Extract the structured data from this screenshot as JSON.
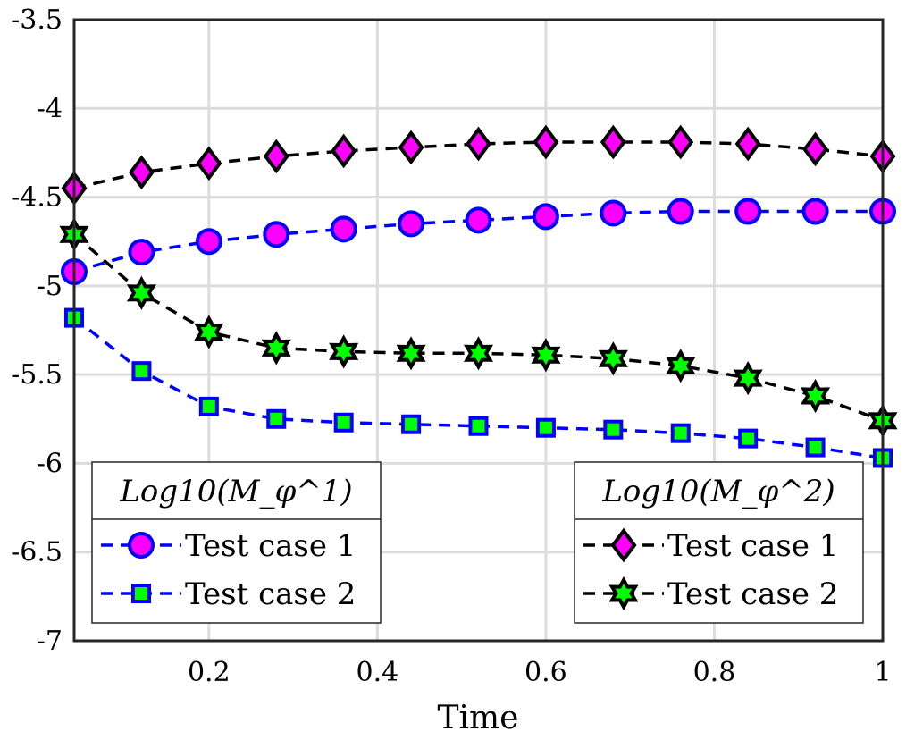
{
  "chart_data": {
    "type": "line",
    "xlabel": "Time",
    "ylabel": "",
    "xlim": [
      0.04,
      1.0
    ],
    "ylim": [
      -7,
      -3.5
    ],
    "xticks": [
      "0.2",
      "0.4",
      "0.6",
      "0.8",
      "1"
    ],
    "yticks": [
      "-3.5",
      "-4",
      "-4.5",
      "-5",
      "-5.5",
      "-6",
      "-6.5",
      "-7"
    ],
    "grid": true,
    "x": [
      0.04,
      0.12,
      0.2,
      0.28,
      0.36,
      0.44,
      0.52,
      0.6,
      0.68,
      0.76,
      0.84,
      0.92,
      1.0
    ],
    "legends": [
      {
        "title": "Log10(M_φ^1)",
        "placement": "bottom-left",
        "entries": [
          "Test case 1",
          "Test case 2"
        ]
      },
      {
        "title": "Log10(M_φ^2)",
        "placement": "bottom-right",
        "entries": [
          "Test case 1",
          "Test case 2"
        ]
      }
    ],
    "series": [
      {
        "name": "Test case 1",
        "legend": "Log10(M_φ^1)",
        "marker": "circle",
        "line_color": "#0000ff",
        "fill_color": "#ff00ff",
        "edge_color": "#0000ff",
        "values": [
          -4.92,
          -4.81,
          -4.75,
          -4.71,
          -4.68,
          -4.65,
          -4.63,
          -4.61,
          -4.59,
          -4.58,
          -4.58,
          -4.58,
          -4.58
        ]
      },
      {
        "name": "Test case 2",
        "legend": "Log10(M_φ^1)",
        "marker": "square",
        "line_color": "#0000ff",
        "fill_color": "#00ff00",
        "edge_color": "#0000ff",
        "values": [
          -5.18,
          -5.48,
          -5.68,
          -5.75,
          -5.77,
          -5.78,
          -5.79,
          -5.8,
          -5.81,
          -5.83,
          -5.86,
          -5.91,
          -5.97
        ]
      },
      {
        "name": "Test case 1",
        "legend": "Log10(M_φ^2)",
        "marker": "diamond",
        "line_color": "#000000",
        "fill_color": "#ff00ff",
        "edge_color": "#000000",
        "values": [
          -4.45,
          -4.36,
          -4.31,
          -4.27,
          -4.24,
          -4.22,
          -4.2,
          -4.19,
          -4.19,
          -4.19,
          -4.2,
          -4.23,
          -4.27
        ]
      },
      {
        "name": "Test case 2",
        "legend": "Log10(M_φ^2)",
        "marker": "hexagram",
        "line_color": "#000000",
        "fill_color": "#00ff00",
        "edge_color": "#000000",
        "values": [
          -4.71,
          -5.04,
          -5.26,
          -5.35,
          -5.37,
          -5.38,
          -5.38,
          -5.39,
          -5.41,
          -5.45,
          -5.52,
          -5.62,
          -5.76
        ]
      }
    ]
  }
}
